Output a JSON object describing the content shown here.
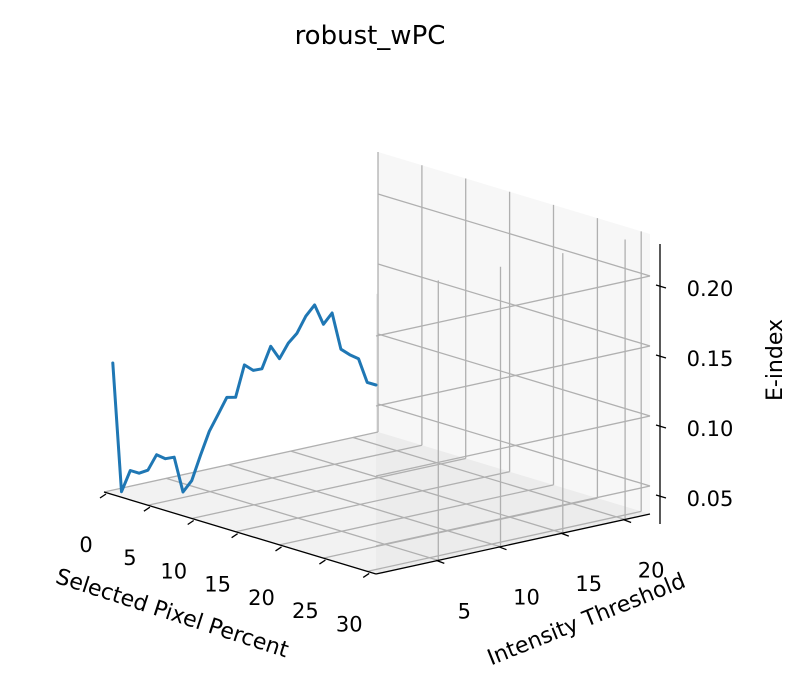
{
  "chart_data": {
    "type": "line",
    "projection": "3d",
    "title": "robust_wPC",
    "xlabel": "Selected Pixel Percent",
    "ylabel": "Intensity Threshold",
    "zlabel": "E-index",
    "xlim": [
      0,
      31
    ],
    "ylim": [
      0,
      22
    ],
    "zlim": [
      0.03,
      0.23
    ],
    "xticks": [
      "0",
      "5",
      "10",
      "15",
      "20",
      "25",
      "30"
    ],
    "yticks": [
      "5",
      "10",
      "15",
      "20"
    ],
    "zticks": [
      "0.05",
      "0.10",
      "0.15",
      "0.20"
    ],
    "grid": true,
    "series": [
      {
        "color": "#1f77b4",
        "y_constant": 0,
        "x": [
          1,
          2,
          3,
          4,
          5,
          6,
          7,
          8,
          9,
          10,
          11,
          12,
          13,
          14,
          15,
          16,
          17,
          18,
          19,
          20,
          21,
          22,
          23,
          24,
          25,
          26,
          27,
          28,
          29,
          30,
          31
        ],
        "values": [
          0.124,
          0.034,
          0.051,
          0.051,
          0.055,
          0.068,
          0.067,
          0.07,
          0.047,
          0.057,
          0.077,
          0.096,
          0.11,
          0.124,
          0.126,
          0.151,
          0.149,
          0.152,
          0.17,
          0.163,
          0.176,
          0.185,
          0.199,
          0.209,
          0.197,
          0.207,
          0.183,
          0.181,
          0.18,
          0.165,
          0.165
        ]
      }
    ]
  }
}
